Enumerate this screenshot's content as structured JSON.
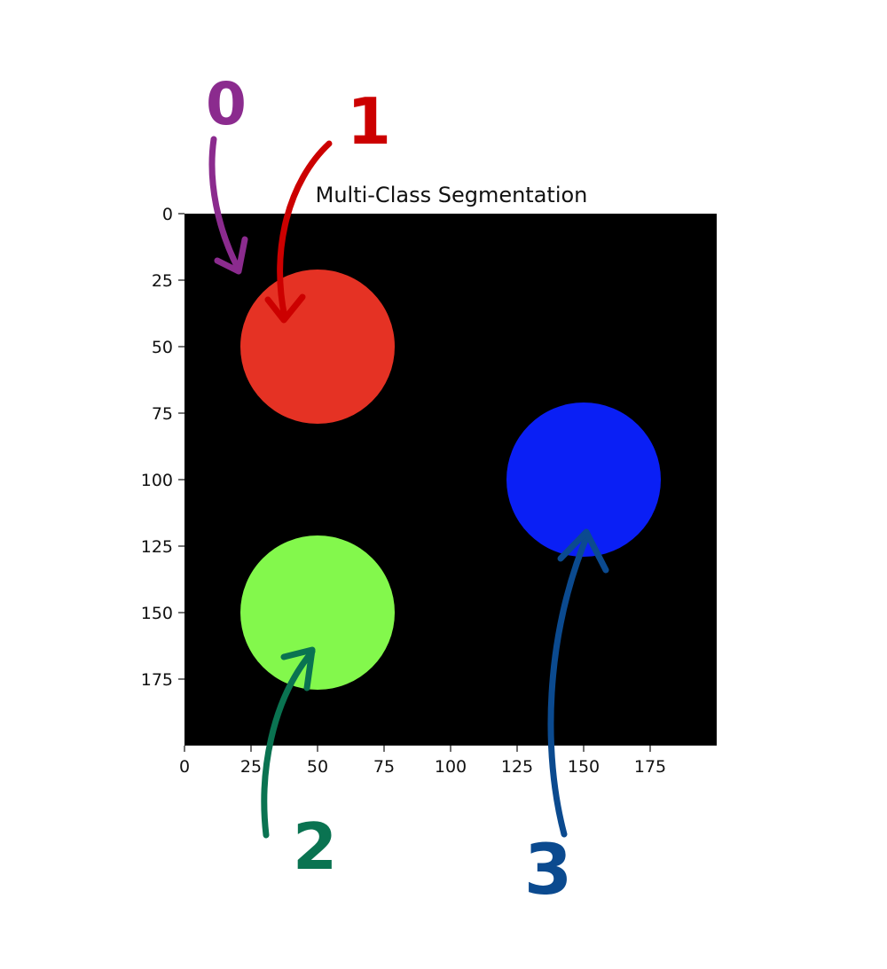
{
  "chart_data": {
    "type": "heatmap",
    "title": "Multi-Class Segmentation",
    "xlabel": "",
    "ylabel": "",
    "xlim": [
      0,
      200
    ],
    "ylim": [
      200,
      0
    ],
    "grid": false,
    "xticks": [
      0,
      25,
      50,
      75,
      100,
      125,
      150,
      175
    ],
    "yticks": [
      0,
      25,
      50,
      75,
      100,
      125,
      150,
      175
    ],
    "background_class": {
      "class": 0,
      "color": "#000000"
    },
    "regions": [
      {
        "class": 1,
        "shape": "circle",
        "center_x": 50,
        "center_y": 50,
        "radius": 29,
        "color": "#e53224"
      },
      {
        "class": 2,
        "shape": "circle",
        "center_x": 50,
        "center_y": 150,
        "radius": 29,
        "color": "#83f84c"
      },
      {
        "class": 3,
        "shape": "circle",
        "center_x": 150,
        "center_y": 100,
        "radius": 29,
        "color": "#0a1ff5"
      }
    ]
  },
  "annotations": [
    {
      "text": "0",
      "color": "#8b2b8e"
    },
    {
      "text": "1",
      "color": "#cc0000"
    },
    {
      "text": "2",
      "color": "#0a7351"
    },
    {
      "text": "3",
      "color": "#0b4a8f"
    }
  ]
}
